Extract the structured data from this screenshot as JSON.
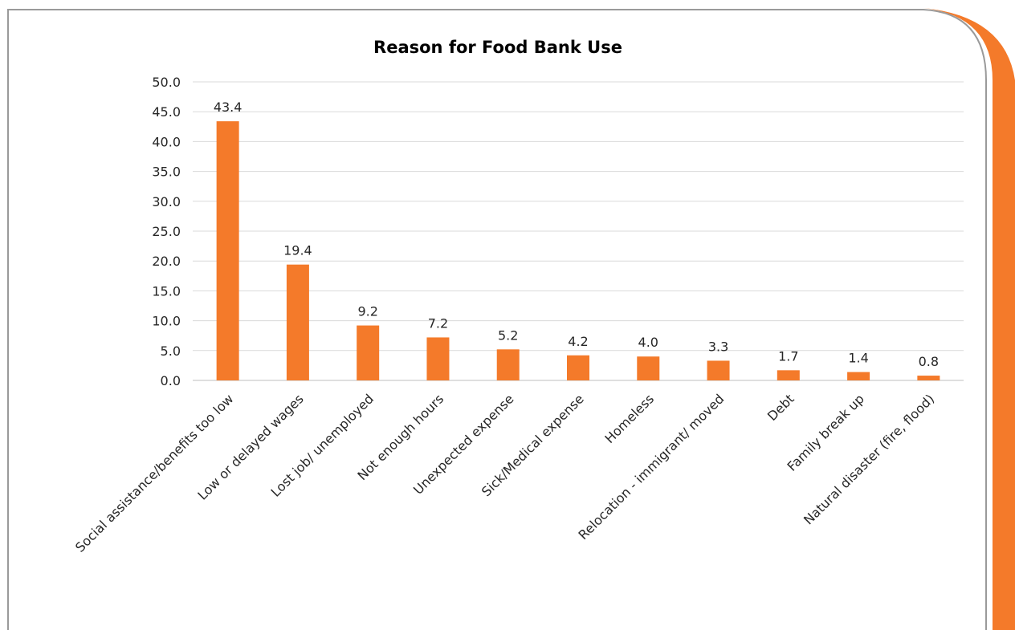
{
  "colors": {
    "accent": "#f47a2a",
    "frame_border": "#9a9a9a",
    "grid": "#d9d9d9",
    "text": "#262626"
  },
  "chart_data": {
    "type": "bar",
    "title": "Reason for Food Bank Use",
    "xlabel": "",
    "ylabel": "",
    "ylim": [
      0,
      50
    ],
    "yticks": [
      "0.0",
      "5.0",
      "10.0",
      "15.0",
      "20.0",
      "25.0",
      "30.0",
      "35.0",
      "40.0",
      "45.0",
      "50.0"
    ],
    "grid": true,
    "legend": "none",
    "categories": [
      "Social assistance/benefits too low",
      "Low or delayed wages",
      "Lost job/ unemployed",
      "Not enough hours",
      "Unexpected expense",
      "Sick/Medical expense",
      "Homeless",
      "Relocation - immigrant/ moved",
      "Debt",
      "Family break up",
      "Natural disaster (fire, flood)"
    ],
    "values": [
      43.4,
      19.4,
      9.2,
      7.2,
      5.2,
      4.2,
      4.0,
      3.3,
      1.7,
      1.4,
      0.8
    ],
    "data_labels": [
      "43.4",
      "19.4",
      "9.2",
      "7.2",
      "5.2",
      "4.2",
      "4.0",
      "3.3",
      "1.7",
      "1.4",
      "0.8"
    ]
  }
}
